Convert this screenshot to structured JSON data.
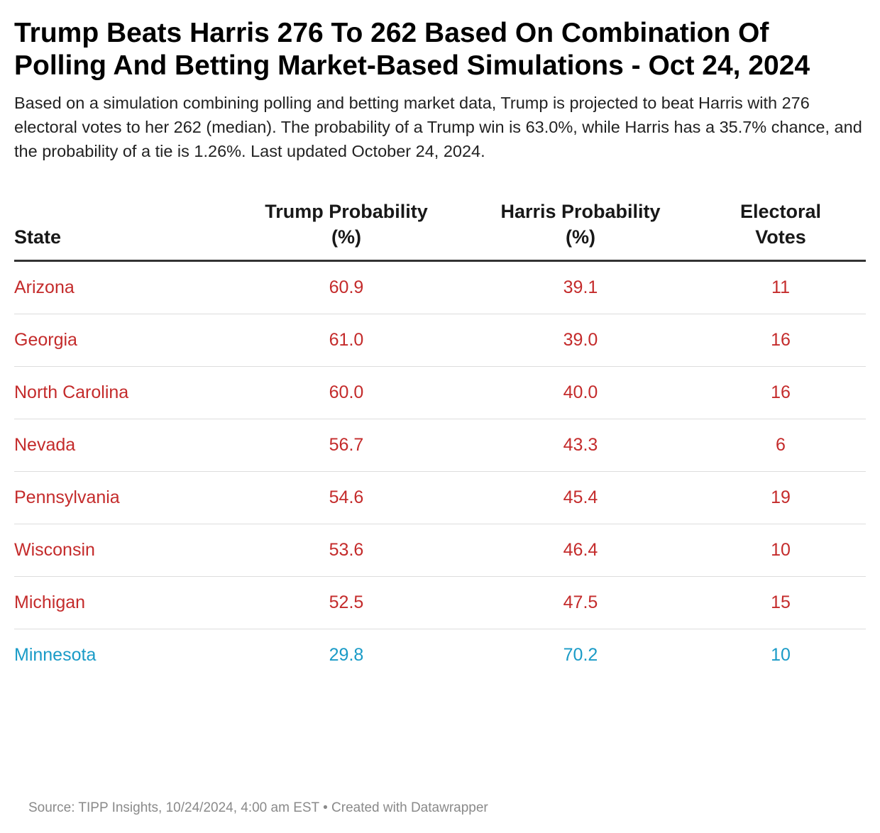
{
  "header": {
    "title": "Trump Beats Harris 276 To 262 Based On Combination Of Polling And Betting Market-Based Simulations - Oct 24, 2024",
    "subtitle": "Based on a simulation combining polling and betting market data, Trump is projected to beat Harris with 276 electoral votes to her 262 (median). The probability of a Trump win is 63.0%, while Harris has a 35.7% chance, and the probability of a tie is 1.26%. Last updated October 24, 2024."
  },
  "colors": {
    "trump_red": "#c42b2b",
    "harris_blue": "#1a9bc7"
  },
  "chart_data": {
    "type": "table",
    "title": "Trump Beats Harris 276 To 262 Based On Combination Of Polling And Betting Market-Based Simulations - Oct 24, 2024",
    "columns": [
      "State",
      "Trump Probability (%)",
      "Harris Probability (%)",
      "Electoral Votes"
    ],
    "rows": [
      {
        "state": "Arizona",
        "trump": "60.9",
        "harris": "39.1",
        "ev": "11",
        "lean": "trump"
      },
      {
        "state": "Georgia",
        "trump": "61.0",
        "harris": "39.0",
        "ev": "16",
        "lean": "trump"
      },
      {
        "state": "North Carolina",
        "trump": "60.0",
        "harris": "40.0",
        "ev": "16",
        "lean": "trump"
      },
      {
        "state": "Nevada",
        "trump": "56.7",
        "harris": "43.3",
        "ev": "6",
        "lean": "trump"
      },
      {
        "state": "Pennsylvania",
        "trump": "54.6",
        "harris": "45.4",
        "ev": "19",
        "lean": "trump"
      },
      {
        "state": "Wisconsin",
        "trump": "53.6",
        "harris": "46.4",
        "ev": "10",
        "lean": "trump"
      },
      {
        "state": "Michigan",
        "trump": "52.5",
        "harris": "47.5",
        "ev": "15",
        "lean": "trump"
      },
      {
        "state": "Minnesota",
        "trump": "29.8",
        "harris": "70.2",
        "ev": "10",
        "lean": "harris"
      }
    ]
  },
  "footer": {
    "source": "Source: TIPP Insights, 10/24/2024, 4:00 am EST • Created with Datawrapper"
  }
}
